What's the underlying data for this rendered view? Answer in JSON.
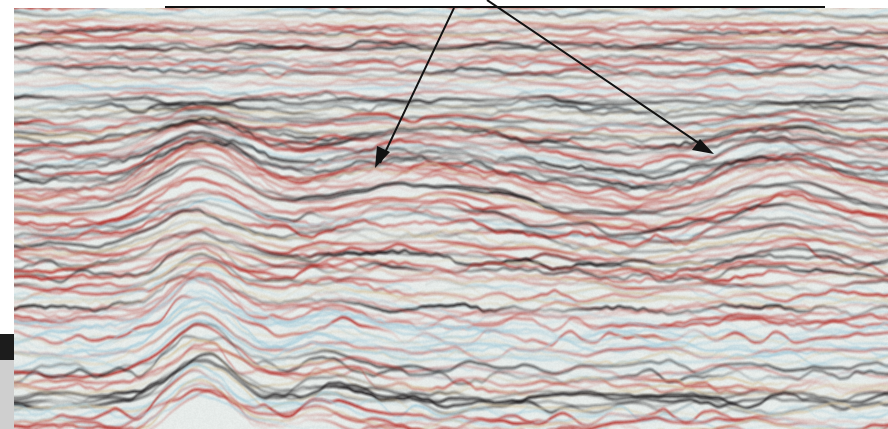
{
  "colors": {
    "background": "#ffffff",
    "section_base": "#e7ecea",
    "black_trough": "#161214",
    "red_peak": "#b4302b",
    "pale_blue": "#a9cedc",
    "tan": "#d6c39f",
    "left_block": "#1c1c1c",
    "left_gray": "#cfcfcf",
    "arrow": "#111111"
  },
  "icons": {
    "left_arrow": "arrow-down-left-icon",
    "right_arrow": "arrow-down-right-icon"
  }
}
